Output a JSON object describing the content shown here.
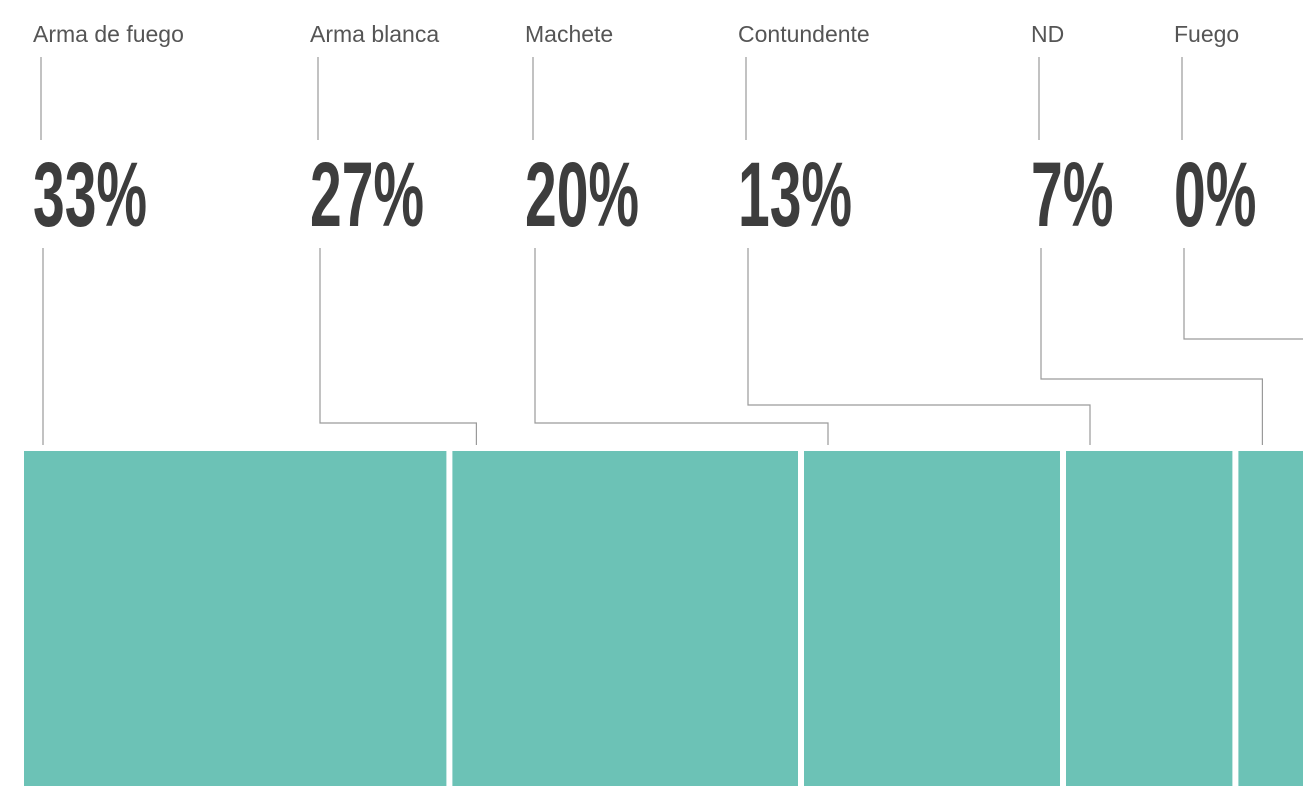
{
  "chart_data": {
    "type": "strip",
    "categories": [
      "Arma de fuego",
      "Arma blanca",
      "Machete",
      "Contundente",
      "ND",
      "Fuego"
    ],
    "values": [
      33,
      27,
      20,
      13,
      7,
      0
    ],
    "value_labels": [
      "33%",
      "27%",
      "20%",
      "13%",
      "7%",
      "0%"
    ],
    "color": "#6cc2b6"
  }
}
